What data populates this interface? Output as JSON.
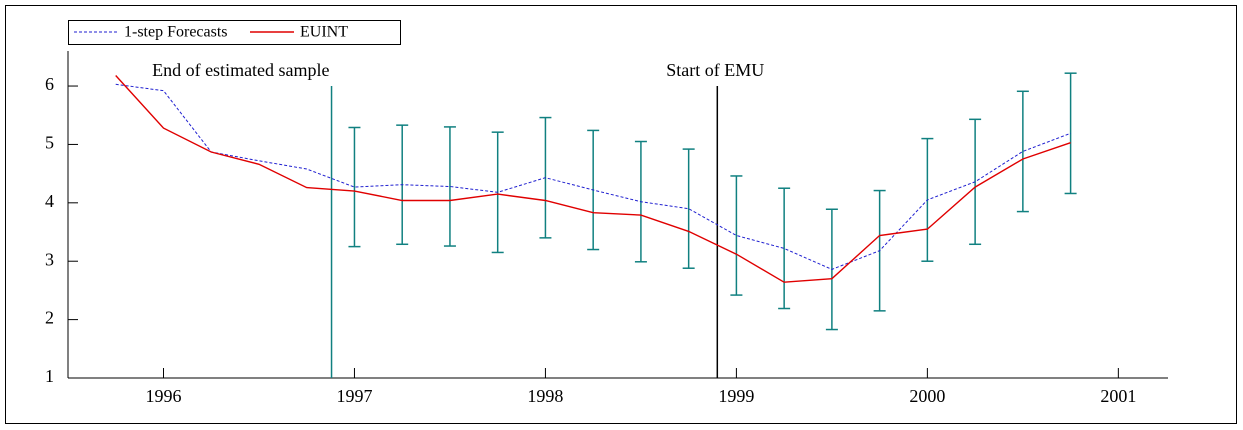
{
  "chart_data": {
    "type": "line",
    "x": [
      1995.75,
      1996.0,
      1996.25,
      1996.5,
      1996.75,
      1997.0,
      1997.25,
      1997.5,
      1997.75,
      1998.0,
      1998.25,
      1998.5,
      1998.75,
      1999.0,
      1999.25,
      1999.5,
      1999.75,
      2000.0,
      2000.25,
      2000.5,
      2000.75
    ],
    "series": [
      {
        "name": "1-step Forecasts",
        "color": "#1f1fd0",
        "dashed": true,
        "values": [
          6.03,
          5.92,
          4.87,
          4.72,
          4.58,
          4.27,
          4.31,
          4.28,
          4.18,
          4.43,
          4.22,
          4.02,
          3.9,
          3.44,
          3.22,
          2.86,
          3.18,
          4.05,
          4.36,
          4.88,
          5.19
        ],
        "errors": [
          null,
          null,
          null,
          null,
          null,
          1.02,
          1.02,
          1.02,
          1.03,
          1.03,
          1.02,
          1.03,
          1.02,
          1.02,
          1.03,
          1.03,
          1.03,
          1.05,
          1.07,
          1.03,
          1.03
        ],
        "error_color": "#108080"
      },
      {
        "name": "EUINT",
        "color": "#e00000",
        "dashed": false,
        "values": [
          6.18,
          5.28,
          4.87,
          4.66,
          4.26,
          4.2,
          4.04,
          4.04,
          4.15,
          4.04,
          3.83,
          3.79,
          3.51,
          3.12,
          2.64,
          2.7,
          3.44,
          3.55,
          4.27,
          4.75,
          5.03
        ]
      }
    ],
    "annotations": [
      {
        "text": "End of estimated sample",
        "x": 1996.88,
        "color": "#108080"
      },
      {
        "text": "Start of EMU",
        "x": 1998.9,
        "color": "#000000"
      }
    ],
    "xlim": [
      1995.5,
      2001.26
    ],
    "xticks": [
      1996,
      1997,
      1998,
      1999,
      2000,
      2001
    ],
    "ylim": [
      1,
      6.6
    ],
    "yticks": [
      1,
      2,
      3,
      4,
      5,
      6
    ]
  }
}
